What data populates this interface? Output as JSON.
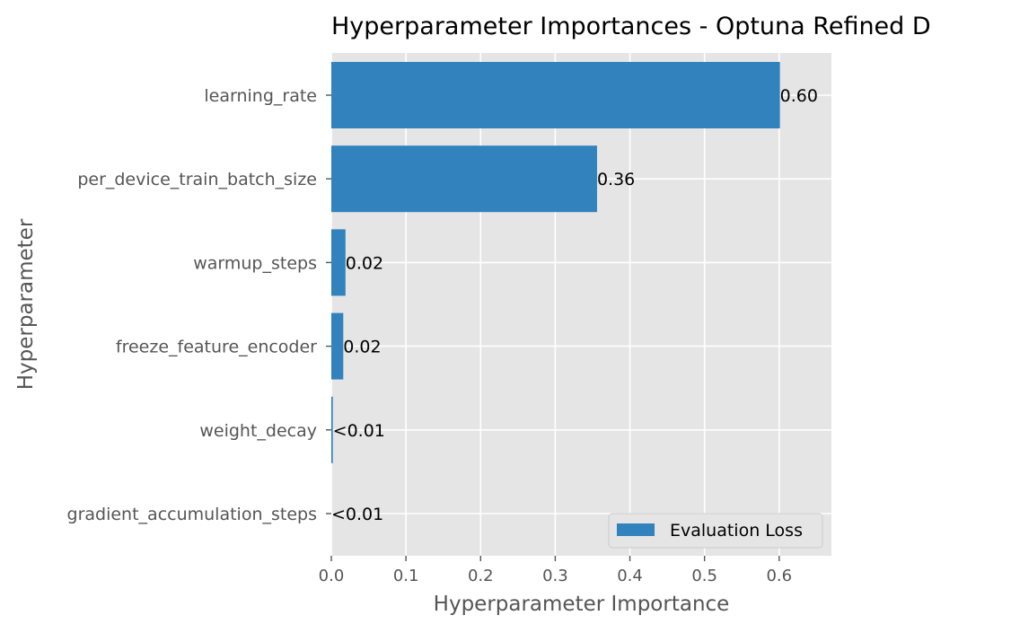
{
  "chart_data": {
    "type": "bar",
    "orientation": "horizontal",
    "title": "Hyperparameter Importances - Optuna Refined D",
    "xlabel": "Hyperparameter Importance",
    "ylabel": "Hyperparameter",
    "xlim": [
      0.0,
      0.67
    ],
    "xticks": [
      "0.0",
      "0.1",
      "0.2",
      "0.3",
      "0.4",
      "0.5",
      "0.6"
    ],
    "grid": true,
    "legend_position": "lower-right",
    "colors": {
      "bar": "#3182bd",
      "axes_background": "#e5e5e5",
      "grid": "#ffffff",
      "tick_label": "#555555",
      "title": "#000000"
    },
    "categories": [
      "learning_rate",
      "per_device_train_batch_size",
      "warmup_steps",
      "freeze_feature_encoder",
      "weight_decay",
      "gradient_accumulation_steps"
    ],
    "series": [
      {
        "name": "Evaluation Loss",
        "values": [
          0.601,
          0.356,
          0.019,
          0.016,
          0.002,
          0.0
        ],
        "labels": [
          "0.60",
          "0.36",
          "0.02",
          "0.02",
          "<0.01",
          "<0.01"
        ]
      }
    ]
  }
}
